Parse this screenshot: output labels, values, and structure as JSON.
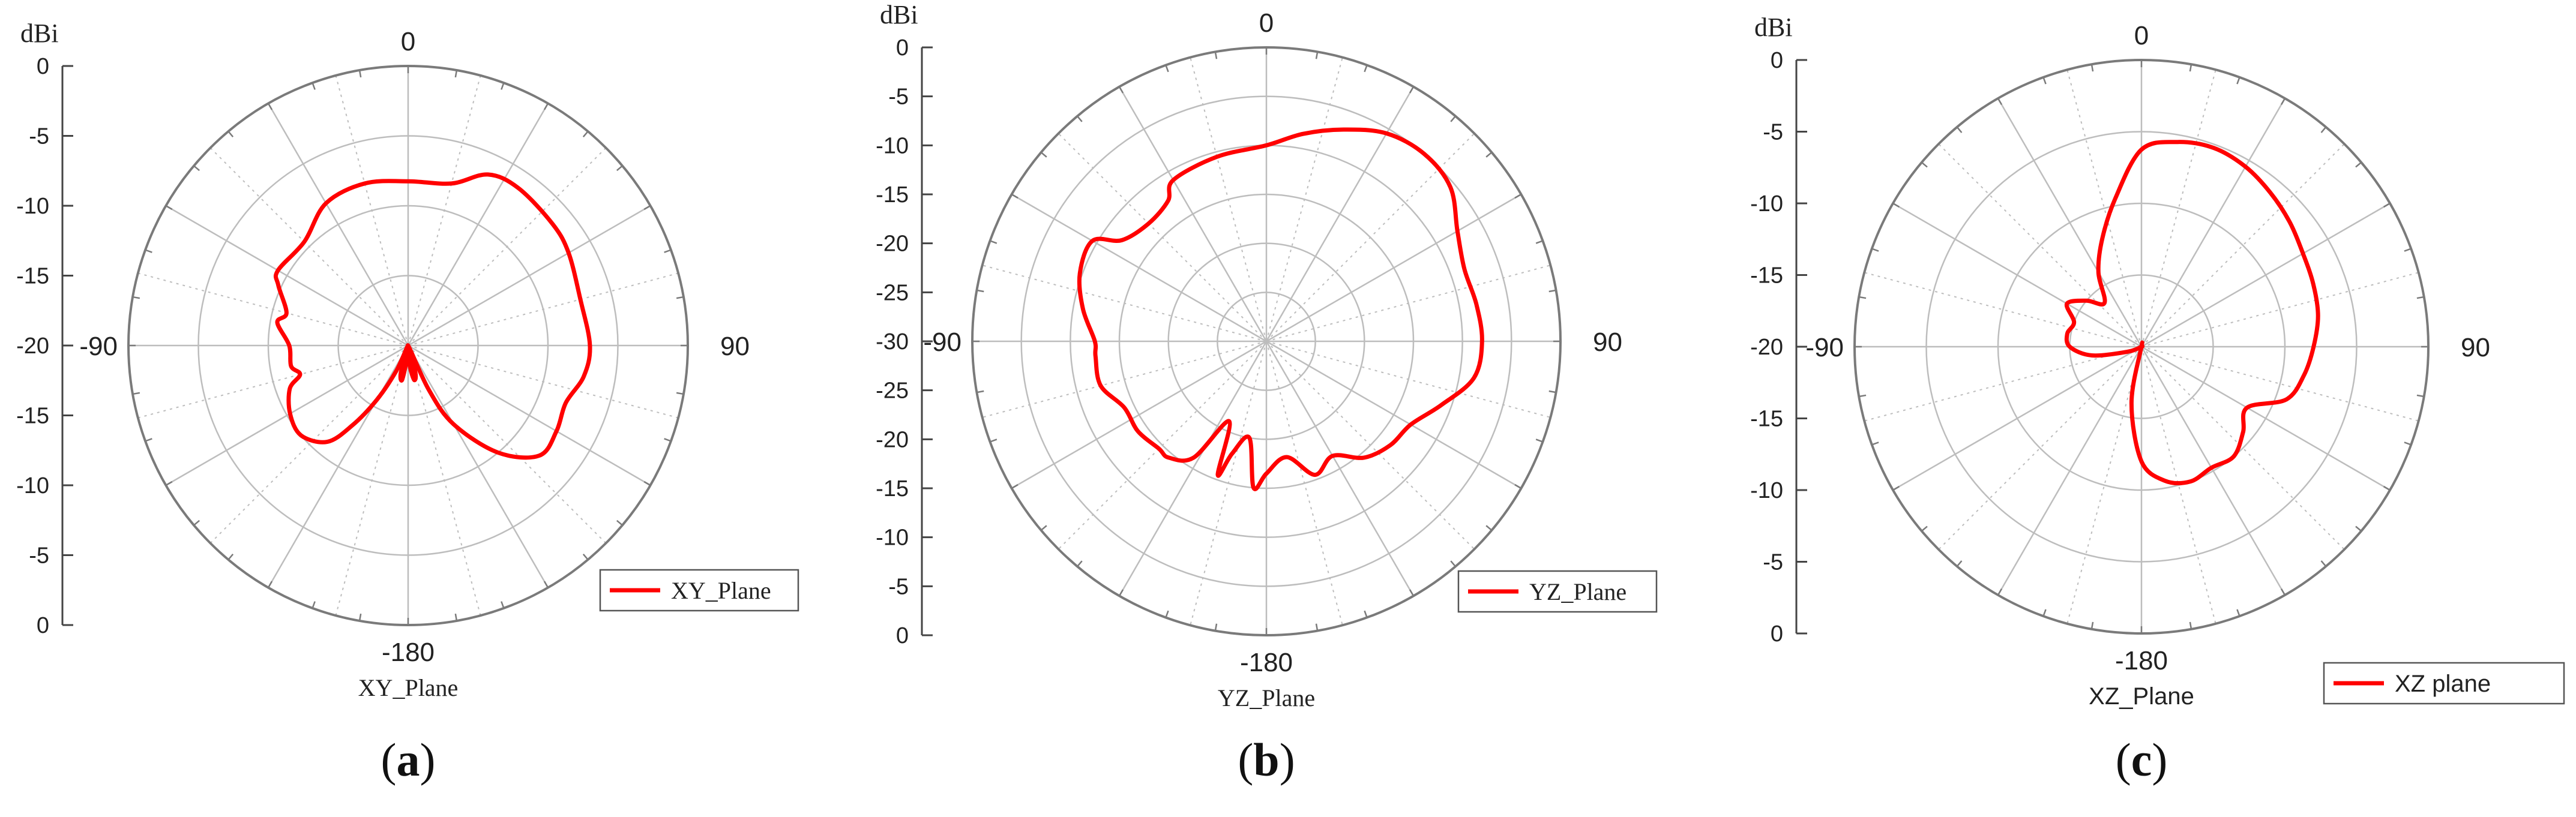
{
  "figure": {
    "panel_labels": [
      "a",
      "b",
      "c"
    ]
  },
  "chart_data": [
    {
      "type": "polar-line",
      "id": "a",
      "title": "",
      "xlabel": "XY_Plane",
      "radial_unit_label": "dBi",
      "radial_tick_labels": [
        "0",
        "-5",
        "-10",
        "-15",
        "-20",
        "-15",
        "-10",
        "-5",
        "0"
      ],
      "radial_range_dBi": [
        -40,
        0
      ],
      "angle_labels": [
        "0",
        "90",
        "-180",
        "-90"
      ],
      "legend": {
        "label": "XY_Plane",
        "placement": "bottom-right"
      },
      "colors": {
        "series": "#ff0000",
        "grid": "#bdbdbd",
        "axis": "#7a7a7a"
      },
      "series": [
        {
          "name": "XY_Plane",
          "angle_deg": [
            0,
            15,
            25,
            35,
            50,
            60,
            75,
            90,
            100,
            110,
            120,
            130,
            140,
            150,
            155,
            160,
            165,
            170,
            175,
            180,
            185,
            190,
            195,
            200,
            205,
            210,
            215,
            220,
            230,
            240,
            250,
            255,
            260,
            270,
            280,
            285,
            295,
            300,
            315,
            330,
            345,
            360
          ],
          "gain_dBi": [
            -16.5,
            -16,
            -13,
            -12.5,
            -13,
            -13.5,
            -14.5,
            -14,
            -14.5,
            -16,
            -15.5,
            -15.5,
            -20,
            -27,
            -33,
            -40,
            -36,
            -35,
            -37,
            -40,
            -38,
            -35,
            -36,
            -40,
            -36,
            -31,
            -26,
            -22,
            -20,
            -20.5,
            -22,
            -24,
            -23,
            -23,
            -21,
            -22,
            -19.5,
            -18.5,
            -19,
            -16.5,
            -16,
            -16.5
          ]
        }
      ]
    },
    {
      "type": "polar-line",
      "id": "b",
      "title": "",
      "xlabel": "YZ_Plane",
      "radial_unit_label": "dBi",
      "radial_tick_labels": [
        "0",
        "-5",
        "-10",
        "-15",
        "-20",
        "-25",
        "-30",
        "-25",
        "-20",
        "-15",
        "-10",
        "-5",
        "0"
      ],
      "radial_range_dBi": [
        -60,
        0
      ],
      "angle_labels": [
        "0",
        "90",
        "-180",
        "-90"
      ],
      "legend": {
        "label": "YZ_Plane",
        "placement": "bottom-right"
      },
      "colors": {
        "series": "#ff0000",
        "grid": "#bdbdbd",
        "axis": "#7a7a7a"
      },
      "series": [
        {
          "name": "YZ_Plane",
          "angle_deg": [
            0,
            10,
            20,
            30,
            40,
            50,
            60,
            70,
            80,
            90,
            100,
            110,
            120,
            130,
            140,
            150,
            160,
            170,
            180,
            185,
            190,
            197,
            200,
            205,
            212,
            220,
            225,
            235,
            245,
            255,
            265,
            270,
            280,
            290,
            300,
            305,
            315,
            325,
            330,
            345,
            360
          ],
          "gain_dBi": [
            -20,
            -17,
            -14,
            -11,
            -10,
            -11,
            -15,
            -17,
            -16.5,
            -16,
            -17,
            -22,
            -26,
            -27,
            -29,
            -33,
            -31,
            -36,
            -33,
            -30,
            -40,
            -36,
            -31,
            -42,
            -32,
            -29,
            -29,
            -28,
            -28,
            -25,
            -25,
            -25,
            -22,
            -19.5,
            -19,
            -24,
            -26,
            -25,
            -22,
            -21,
            -20
          ]
        }
      ]
    },
    {
      "type": "polar-line",
      "id": "c",
      "title": "",
      "xlabel": "XZ_Plane",
      "radial_unit_label": "dBi",
      "radial_tick_labels": [
        "0",
        "-5",
        "-10",
        "-15",
        "-20",
        "-15",
        "-10",
        "-5",
        "0"
      ],
      "radial_range_dBi": [
        -40,
        0
      ],
      "angle_labels": [
        "0",
        "90",
        "-180",
        "-90"
      ],
      "legend": {
        "label": "XZ plane",
        "placement": "bottom-right"
      },
      "colors": {
        "series": "#ff0000",
        "grid": "#bdbdbd",
        "axis": "#7a7a7a"
      },
      "series": [
        {
          "name": "XZ plane",
          "angle_deg": [
            0,
            10,
            20,
            30,
            40,
            50,
            60,
            70,
            80,
            90,
            100,
            110,
            120,
            130,
            140,
            150,
            160,
            170,
            180,
            190,
            200,
            210,
            220,
            230,
            240,
            250,
            260,
            270,
            280,
            290,
            300,
            310,
            320,
            330,
            340,
            350,
            360
          ],
          "gain_dBi": [
            -12.5,
            -11,
            -10.5,
            -11,
            -12,
            -13,
            -14,
            -14.5,
            -15,
            -16,
            -17,
            -18.5,
            -23,
            -21.5,
            -20,
            -20.5,
            -20,
            -21,
            -24,
            -32,
            -40,
            -40,
            -40,
            -40,
            -40,
            -38,
            -33,
            -30,
            -29.5,
            -30,
            -28,
            -30,
            -32,
            -28,
            -24,
            -19,
            -12.5
          ]
        }
      ]
    }
  ]
}
